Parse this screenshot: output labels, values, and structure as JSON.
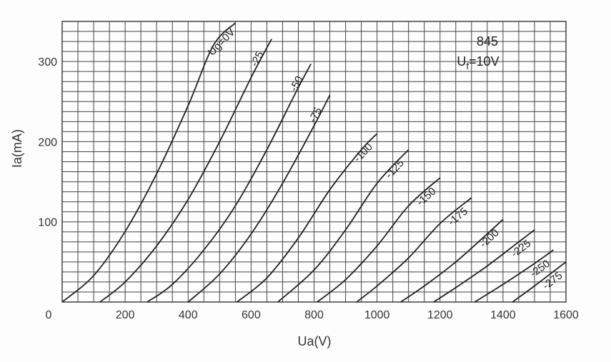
{
  "chart_data": {
    "type": "line",
    "title": "",
    "xlabel": "Ua(V)",
    "ylabel": "Ia(mA)",
    "xlim": [
      0,
      1600
    ],
    "ylim": [
      0,
      350
    ],
    "grid": true,
    "x_ticks": [
      0,
      200,
      400,
      600,
      800,
      1000,
      1200,
      1400,
      1600
    ],
    "y_ticks": [
      100,
      200,
      300
    ],
    "annotation": {
      "tube": "845",
      "filament_prefix": "U",
      "filament_sub": "f",
      "filament_value": "=10V"
    },
    "series": [
      {
        "name": "Ug=0V",
        "x": [
          0,
          100,
          200,
          300,
          400,
          480,
          550
        ],
        "y": [
          0,
          33,
          88,
          160,
          245,
          320,
          348
        ]
      },
      {
        "name": "-25",
        "x": [
          120,
          200,
          300,
          400,
          500,
          600,
          665
        ],
        "y": [
          0,
          25,
          70,
          128,
          200,
          280,
          328
        ]
      },
      {
        "name": "-50",
        "x": [
          270,
          350,
          450,
          550,
          650,
          740,
          790
        ],
        "y": [
          0,
          22,
          65,
          120,
          190,
          260,
          297
        ]
      },
      {
        "name": "-75",
        "x": [
          400,
          500,
          600,
          700,
          800,
          850
        ],
        "y": [
          0,
          35,
          85,
          148,
          220,
          258
        ]
      },
      {
        "name": "-100",
        "x": [
          555,
          650,
          750,
          850,
          950,
          1000
        ],
        "y": [
          0,
          30,
          80,
          140,
          190,
          210
        ]
      },
      {
        "name": "-125",
        "x": [
          685,
          800,
          900,
          1000,
          1100
        ],
        "y": [
          0,
          40,
          90,
          148,
          190
        ]
      },
      {
        "name": "-150",
        "x": [
          810,
          900,
          1000,
          1100,
          1200
        ],
        "y": [
          0,
          28,
          70,
          120,
          155
        ]
      },
      {
        "name": "-175",
        "x": [
          935,
          1000,
          1100,
          1200,
          1300
        ],
        "y": [
          0,
          20,
          55,
          98,
          130
        ]
      },
      {
        "name": "-200",
        "x": [
          1075,
          1150,
          1250,
          1350,
          1400
        ],
        "y": [
          0,
          20,
          50,
          85,
          103
        ]
      },
      {
        "name": "-225",
        "x": [
          1180,
          1250,
          1350,
          1450,
          1500
        ],
        "y": [
          0,
          18,
          45,
          75,
          90
        ]
      },
      {
        "name": "-250",
        "x": [
          1310,
          1400,
          1500,
          1560
        ],
        "y": [
          0,
          22,
          48,
          65
        ]
      },
      {
        "name": "-275",
        "x": [
          1430,
          1500,
          1560,
          1600
        ],
        "y": [
          0,
          20,
          38,
          50
        ]
      }
    ]
  }
}
